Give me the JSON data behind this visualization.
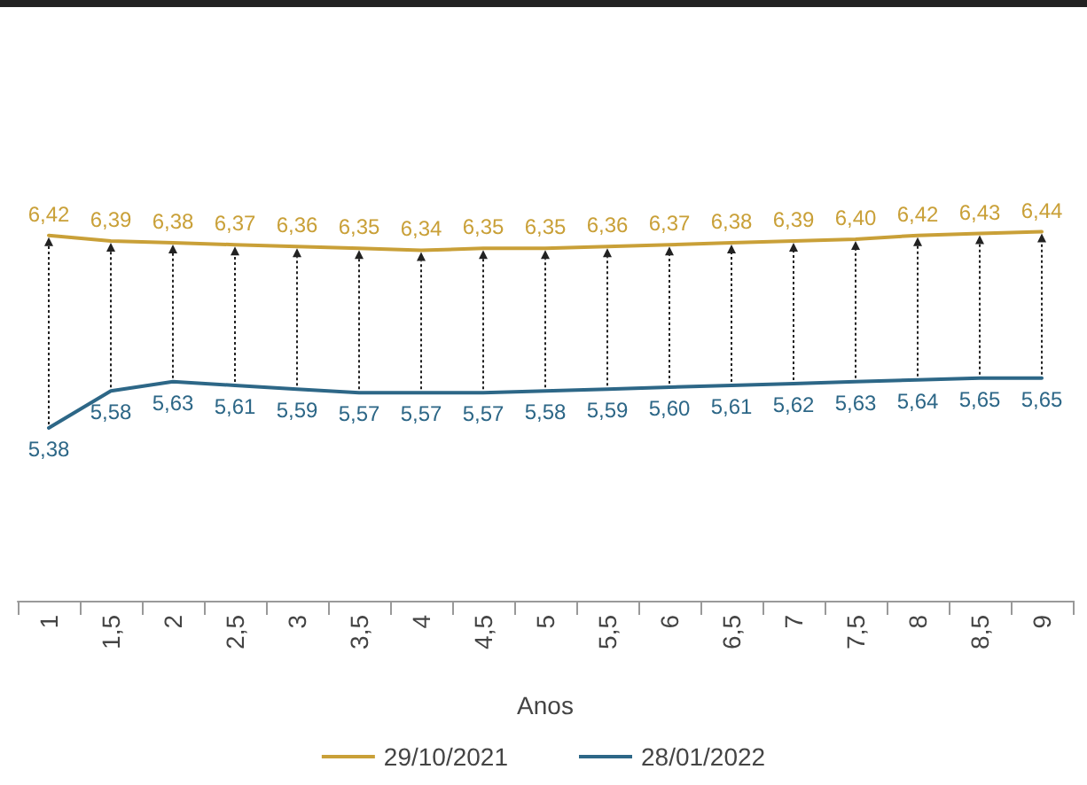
{
  "chart_data": {
    "type": "line",
    "xlabel": "Anos",
    "categories": [
      "1",
      "1,5",
      "2",
      "2,5",
      "3",
      "3,5",
      "4",
      "4,5",
      "5",
      "5,5",
      "6",
      "6,5",
      "7",
      "7,5",
      "8",
      "8,5",
      "9"
    ],
    "series": [
      {
        "name": "29/10/2021",
        "color": "#c9a038",
        "values": [
          6.42,
          6.39,
          6.38,
          6.37,
          6.36,
          6.35,
          6.34,
          6.35,
          6.35,
          6.36,
          6.37,
          6.38,
          6.39,
          6.4,
          6.42,
          6.43,
          6.44
        ],
        "value_labels": [
          "6,42",
          "6,39",
          "6,38",
          "6,37",
          "6,36",
          "6,35",
          "6,34",
          "6,35",
          "6,35",
          "6,36",
          "6,37",
          "6,38",
          "6,39",
          "6,40",
          "6,42",
          "6,43",
          "6,44"
        ]
      },
      {
        "name": "28/01/2022",
        "color": "#2d6787",
        "values": [
          5.38,
          5.58,
          5.63,
          5.61,
          5.59,
          5.57,
          5.57,
          5.57,
          5.58,
          5.59,
          5.6,
          5.61,
          5.62,
          5.63,
          5.64,
          5.65,
          5.65
        ],
        "value_labels": [
          "5,38",
          "5,58",
          "5,63",
          "5,61",
          "5,59",
          "5,57",
          "5,57",
          "5,57",
          "5,58",
          "5,59",
          "5,60",
          "5,61",
          "5,62",
          "5,63",
          "5,64",
          "5,65",
          "5,65"
        ]
      }
    ],
    "legend": "bottom",
    "marker": "none",
    "line_style": "solid"
  }
}
